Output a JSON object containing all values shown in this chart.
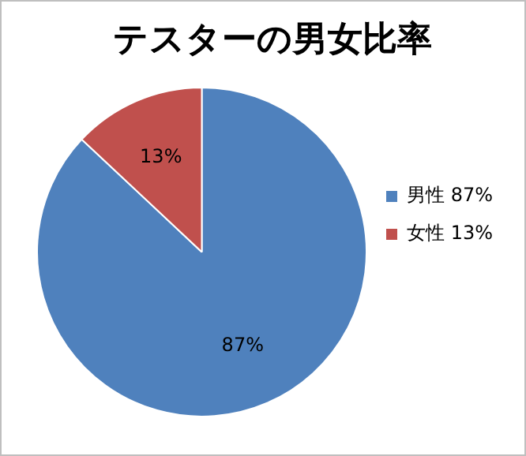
{
  "chart_data": {
    "type": "pie",
    "title": "テスターの男女比率",
    "categories": [
      "男性",
      "女性"
    ],
    "values": [
      87,
      13
    ],
    "colors": [
      "#4f81bd",
      "#c0504d"
    ],
    "value_labels": [
      "87%",
      "13%"
    ],
    "legend": "right"
  }
}
